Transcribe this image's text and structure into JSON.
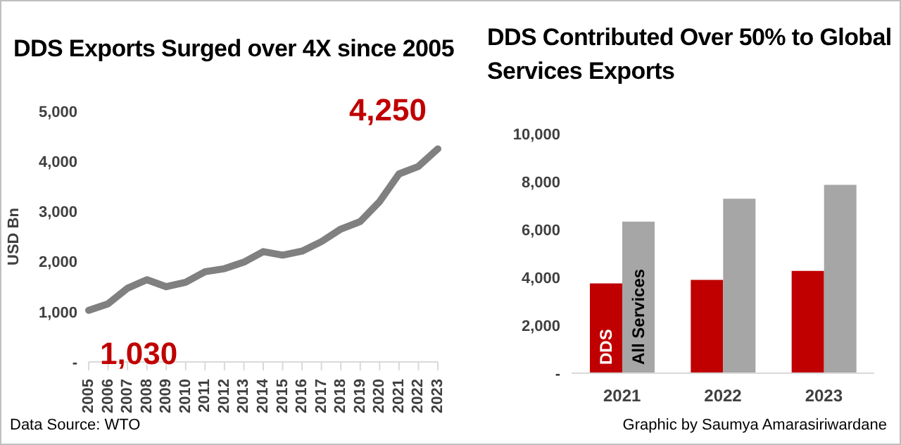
{
  "chart_data": [
    {
      "type": "line",
      "title": "DDS Exports Surged over 4X since 2005",
      "ylabel": "USD Bn",
      "categories": [
        "2005",
        "2006",
        "2007",
        "2008",
        "2009",
        "2010",
        "2011",
        "2012",
        "2013",
        "2014",
        "2015",
        "2016",
        "2017",
        "2018",
        "2019",
        "2020",
        "2021",
        "2022",
        "2023"
      ],
      "series": [
        {
          "color": "#808080",
          "values": [
            1030,
            1160,
            1470,
            1640,
            1500,
            1590,
            1800,
            1860,
            1990,
            2200,
            2130,
            2210,
            2400,
            2650,
            2800,
            3200,
            3750,
            3900,
            4250
          ]
        }
      ],
      "ylim": [
        0,
        5000
      ],
      "yticks": [
        {
          "value": 0,
          "label": "-"
        },
        {
          "value": 1000,
          "label": "1,000"
        },
        {
          "value": 2000,
          "label": "2,000"
        },
        {
          "value": 3000,
          "label": "3,000"
        },
        {
          "value": 4000,
          "label": "4,000"
        },
        {
          "value": 5000,
          "label": "5,000"
        }
      ],
      "grid": false,
      "legend": false,
      "marker": "none",
      "annotations": [
        {
          "text": "1,030",
          "x": "2005",
          "y": 1030
        },
        {
          "text": "4,250",
          "x": "2023",
          "y": 4250
        },
        "Data Source: WTO"
      ]
    },
    {
      "type": "bar",
      "title": "DDS Contributed Over 50% to Global Services Exports",
      "categories": [
        "2021",
        "2022",
        "2023"
      ],
      "series": [
        {
          "name": "DDS",
          "color": "#c00000",
          "values": [
            3750,
            3900,
            4270
          ]
        },
        {
          "name": "All Services",
          "color": "#a6a6a6",
          "values": [
            6330,
            7290,
            7870
          ]
        }
      ],
      "ylim": [
        0,
        10000
      ],
      "yticks": [
        {
          "value": 0,
          "label": "-"
        },
        {
          "value": 2000,
          "label": "2,000"
        },
        {
          "value": 4000,
          "label": "4,000"
        },
        {
          "value": 6000,
          "label": "6,000"
        },
        {
          "value": 8000,
          "label": "8,000"
        },
        {
          "value": 10000,
          "label": "10,000"
        }
      ],
      "grid": false,
      "legend": false,
      "annotations": [
        "Graphic by Saumya Amarasiriwardane"
      ]
    }
  ]
}
